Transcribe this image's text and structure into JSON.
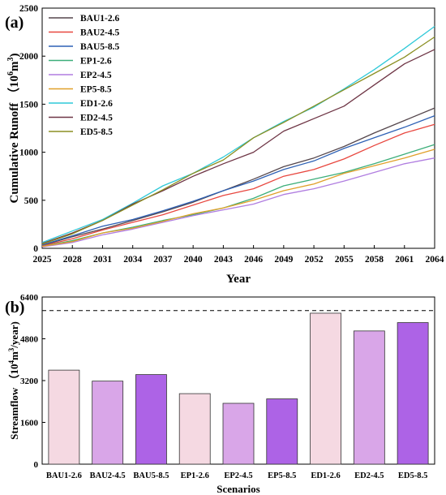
{
  "colors": {
    "BAU1-2.6": "#55474d",
    "BAU2-4.5": "#e8473f",
    "BAU5-8.5": "#2e61b5",
    "EP1-2.6": "#3cae7a",
    "EP2-4.5": "#b07de0",
    "EP5-8.5": "#e0a02a",
    "ED1-2.6": "#2fc9d8",
    "ED2-4.5": "#6e3545",
    "ED5-8.5": "#8b8f22",
    "bar_light": "#f5d9e2",
    "bar_mid": "#d9a6e8",
    "bar_dark": "#ad63e6"
  },
  "chart_data": [
    {
      "type": "line",
      "panel_label": "(a)",
      "xlabel": "Year",
      "ylabel": "Cumulative Runoff",
      "ylabel_unit_base": "10",
      "ylabel_unit_exp": "6",
      "ylabel_unit_m": "m",
      "ylabel_unit_m_exp": "3",
      "xlim": [
        2025,
        2064
      ],
      "ylim": [
        0,
        2500
      ],
      "xticks": [
        "2025",
        "2028",
        "2031",
        "2034",
        "2037",
        "2040",
        "2043",
        "2046",
        "2049",
        "2052",
        "2055",
        "2058",
        "2061",
        "2064"
      ],
      "yticks": [
        "0",
        "500",
        "1000",
        "1500",
        "2000",
        "2500"
      ],
      "legend_position": "top-left",
      "x": [
        2025,
        2028,
        2031,
        2034,
        2037,
        2040,
        2043,
        2046,
        2049,
        2052,
        2055,
        2058,
        2061,
        2064
      ],
      "series": [
        {
          "name": "BAU1-2.6",
          "values": [
            30,
            120,
            200,
            290,
            380,
            480,
            600,
            720,
            850,
            940,
            1060,
            1200,
            1330,
            1460
          ]
        },
        {
          "name": "BAU2-4.5",
          "values": [
            25,
            100,
            190,
            270,
            350,
            450,
            550,
            620,
            750,
            820,
            930,
            1070,
            1200,
            1290
          ]
        },
        {
          "name": "BAU5-8.5",
          "values": [
            35,
            130,
            230,
            300,
            390,
            490,
            600,
            700,
            820,
            910,
            1040,
            1150,
            1260,
            1380
          ]
        },
        {
          "name": "EP1-2.6",
          "values": [
            20,
            80,
            160,
            220,
            290,
            350,
            420,
            520,
            650,
            720,
            790,
            880,
            980,
            1080
          ]
        },
        {
          "name": "EP2-4.5",
          "values": [
            15,
            60,
            140,
            200,
            270,
            340,
            400,
            460,
            560,
            620,
            700,
            790,
            880,
            940
          ]
        },
        {
          "name": "EP5-8.5",
          "values": [
            20,
            70,
            160,
            210,
            280,
            360,
            420,
            500,
            600,
            670,
            780,
            860,
            940,
            1030
          ]
        },
        {
          "name": "ED1-2.6",
          "values": [
            60,
            180,
            300,
            470,
            650,
            780,
            950,
            1150,
            1320,
            1470,
            1660,
            1860,
            2080,
            2310
          ]
        },
        {
          "name": "ED2-4.5",
          "values": [
            50,
            160,
            290,
            460,
            600,
            750,
            880,
            1000,
            1220,
            1350,
            1480,
            1700,
            1920,
            2070
          ]
        },
        {
          "name": "ED5-8.5",
          "values": [
            45,
            150,
            290,
            450,
            610,
            780,
            920,
            1150,
            1310,
            1480,
            1650,
            1820,
            1990,
            2200
          ]
        }
      ]
    },
    {
      "type": "bar",
      "panel_label": "(b)",
      "xlabel": "Scenarios",
      "ylabel": "Streamflow",
      "ylabel_unit_base": "10",
      "ylabel_unit_exp": "4",
      "ylabel_unit_m": "m",
      "ylabel_unit_m_exp": "3",
      "ylabel_unit_tail": "/year",
      "ylim": [
        0,
        6400
      ],
      "yticks": [
        "0",
        "1600",
        "3200",
        "4800",
        "6400"
      ],
      "reference_line": 5880,
      "categories": [
        "BAU1-2.6",
        "BAU2-4.5",
        "BAU5-8.5",
        "EP1-2.6",
        "EP2-4.5",
        "EP5-8.5",
        "ED1-2.6",
        "ED2-4.5",
        "ED5-8.5"
      ],
      "values": [
        3600,
        3180,
        3430,
        2700,
        2330,
        2500,
        5780,
        5100,
        5420
      ],
      "bar_colors": [
        "bar_light",
        "bar_mid",
        "bar_dark",
        "bar_light",
        "bar_mid",
        "bar_dark",
        "bar_light",
        "bar_mid",
        "bar_dark"
      ]
    }
  ]
}
